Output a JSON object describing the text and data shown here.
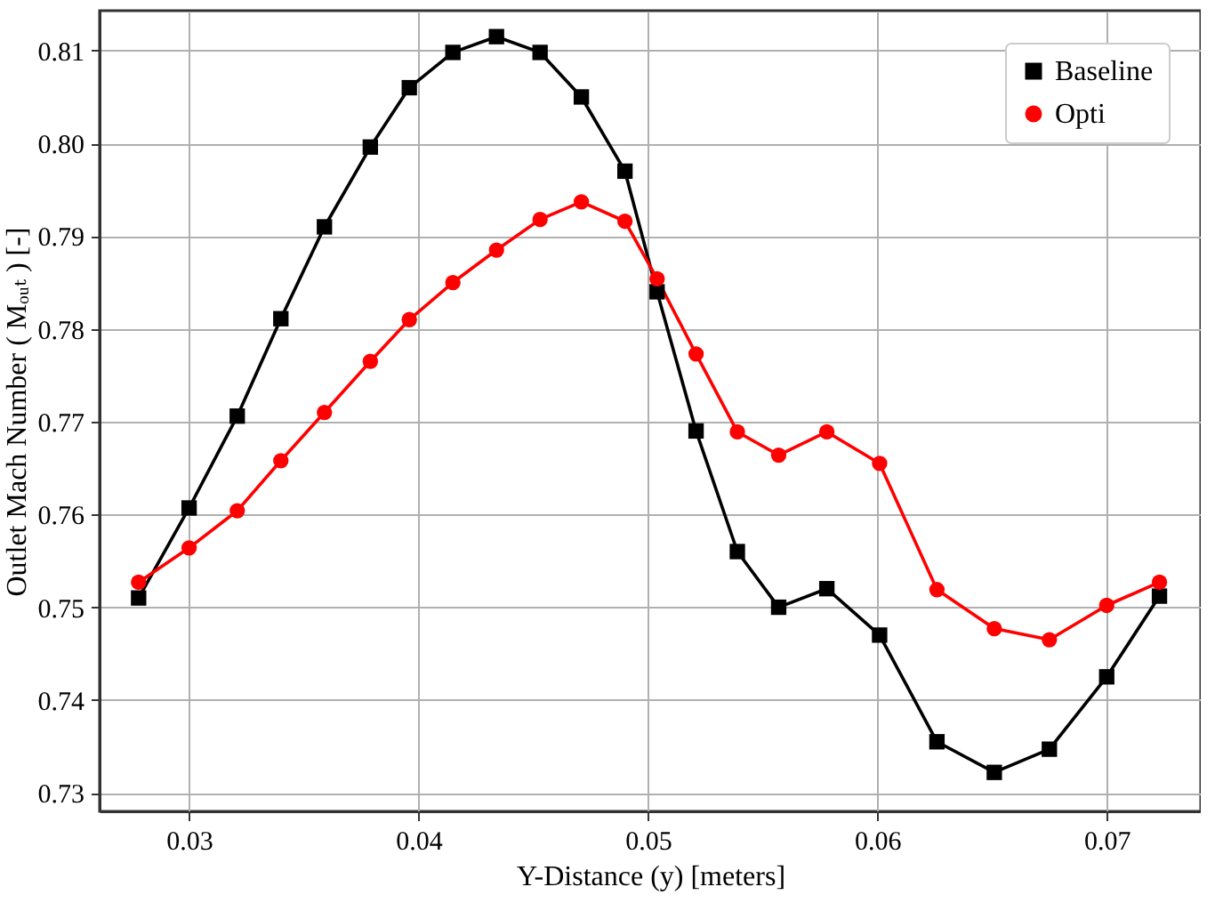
{
  "chart_data": {
    "type": "line",
    "xlabel": "Y-Distance (y) [meters]",
    "ylabel": "Outlet Mach Number ( Mₒᵤₜ ) [-]",
    "x": [
      0.0278,
      0.03,
      0.0321,
      0.034,
      0.0359,
      0.0379,
      0.0396,
      0.0415,
      0.0434,
      0.0453,
      0.0471,
      0.049,
      0.0504,
      0.0521,
      0.0539,
      0.0557,
      0.0578,
      0.0601,
      0.0626,
      0.0651,
      0.0675,
      0.07,
      0.0723
    ],
    "series": [
      {
        "name": "Baseline",
        "color": "#000000",
        "marker": "square",
        "values": [
          0.751,
          0.7607,
          0.7706,
          0.7811,
          0.791,
          0.7996,
          0.806,
          0.8098,
          0.8115,
          0.8098,
          0.805,
          0.797,
          0.784,
          0.769,
          0.756,
          0.75,
          0.752,
          0.747,
          0.7355,
          0.7322,
          0.7347,
          0.7425,
          0.7512
        ]
      },
      {
        "name": "Opti",
        "color": "#ff0000",
        "marker": "circle",
        "values": [
          0.7527,
          0.7564,
          0.7604,
          0.7658,
          0.771,
          0.7765,
          0.781,
          0.785,
          0.7885,
          0.7918,
          0.7937,
          0.7916,
          0.7854,
          0.7773,
          0.7689,
          0.7664,
          0.7689,
          0.7655,
          0.7519,
          0.7477,
          0.7465,
          0.7502,
          0.7527
        ]
      }
    ],
    "xlim": [
      0.0261,
      0.0741
    ],
    "xticks": [
      0.03,
      0.04,
      0.05,
      0.06,
      0.07
    ],
    "ylim": [
      0.728,
      0.8143
    ],
    "yticks": [
      0.73,
      0.74,
      0.75,
      0.76,
      0.77,
      0.78,
      0.79,
      {
        "value": 0.8,
        "label": "0.80"
      },
      0.81
    ],
    "grid": true,
    "legend": "top right",
    "line_style": "solid"
  }
}
